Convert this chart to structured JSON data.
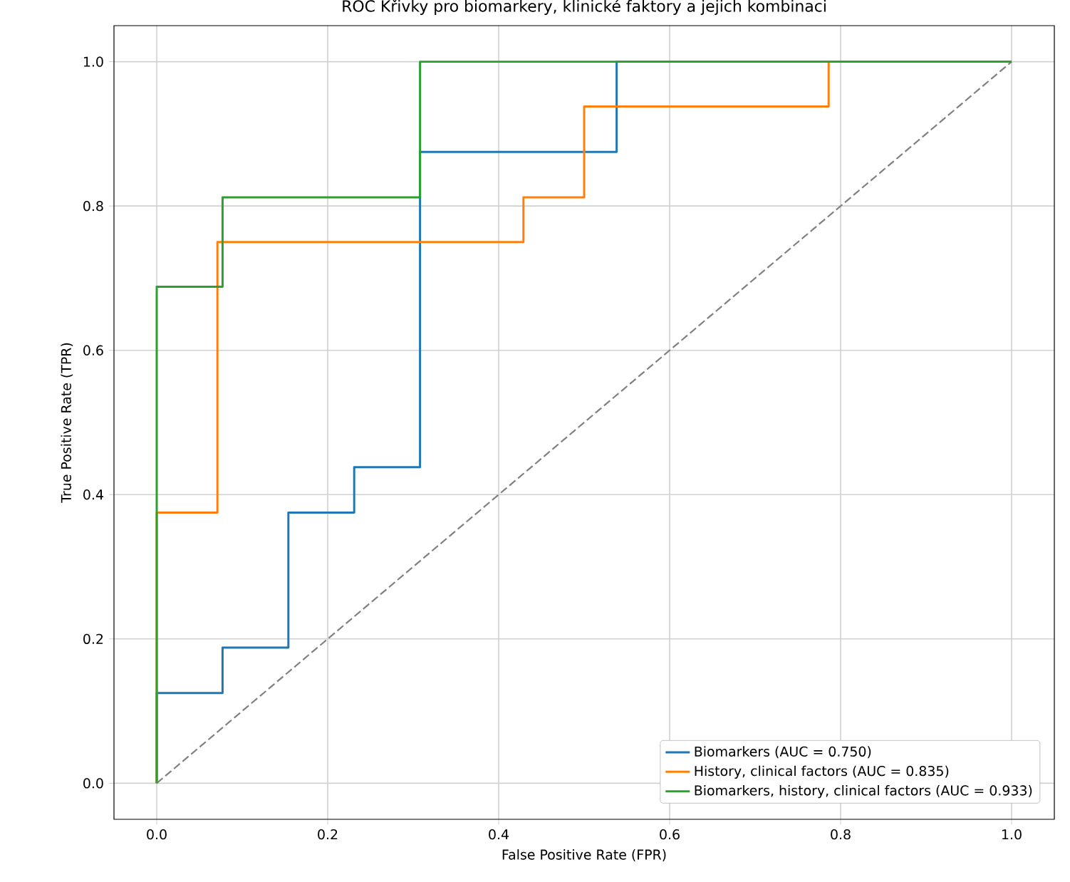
{
  "chart_data": {
    "type": "line",
    "title": "ROC Křivky pro biomarkery, klinické faktory a jejich kombinaci",
    "xlabel": "False Positive Rate (FPR)",
    "ylabel": "True Positive Rate (TPR)",
    "xlim": [
      -0.05,
      1.05
    ],
    "ylim": [
      -0.05,
      1.05
    ],
    "xticks": [
      {
        "value": 0,
        "label": "0.0"
      },
      {
        "value": 0.2,
        "label": "0.2"
      },
      {
        "value": 0.4,
        "label": "0.4"
      },
      {
        "value": 0.6,
        "label": "0.6"
      },
      {
        "value": 0.8,
        "label": "0.8"
      },
      {
        "value": 1,
        "label": "1.0"
      }
    ],
    "yticks": [
      {
        "value": 0,
        "label": "0.0"
      },
      {
        "value": 0.2,
        "label": "0.2"
      },
      {
        "value": 0.4,
        "label": "0.4"
      },
      {
        "value": 0.6,
        "label": "0.6"
      },
      {
        "value": 0.8,
        "label": "0.8"
      },
      {
        "value": 1,
        "label": "1.0"
      }
    ],
    "grid": true,
    "legend": "bottom right",
    "marker": "none",
    "series": [
      {
        "name": "Biomarkers (AUC = 0.750)",
        "color": "#1f77b4",
        "x": [
          0,
          0,
          0.077,
          0.077,
          0.154,
          0.154,
          0.231,
          0.231,
          0.308,
          0.308,
          0.538,
          0.538,
          1
        ],
        "values": [
          0,
          0.125,
          0.125,
          0.188,
          0.188,
          0.375,
          0.375,
          0.438,
          0.438,
          0.875,
          0.875,
          1,
          1
        ]
      },
      {
        "name": "History, clinical factors (AUC = 0.835)",
        "color": "#ff7f0e",
        "x": [
          0,
          0,
          0.071,
          0.071,
          0.429,
          0.429,
          0.5,
          0.5,
          0.786,
          0.786
        ],
        "values": [
          0,
          0.375,
          0.375,
          0.75,
          0.75,
          0.812,
          0.812,
          0.938,
          0.938,
          1
        ]
      },
      {
        "name": "Biomarkers, history, clinical factors (AUC = 0.933)",
        "color": "#2ca02c",
        "x": [
          0,
          0,
          0.077,
          0.077,
          0.308,
          0.308,
          1
        ],
        "values": [
          0,
          0.688,
          0.688,
          0.812,
          0.812,
          1,
          1
        ]
      },
      {
        "color": "#808080",
        "line_style": "dashed",
        "x": [
          0,
          1
        ],
        "values": [
          0,
          1
        ]
      }
    ]
  }
}
